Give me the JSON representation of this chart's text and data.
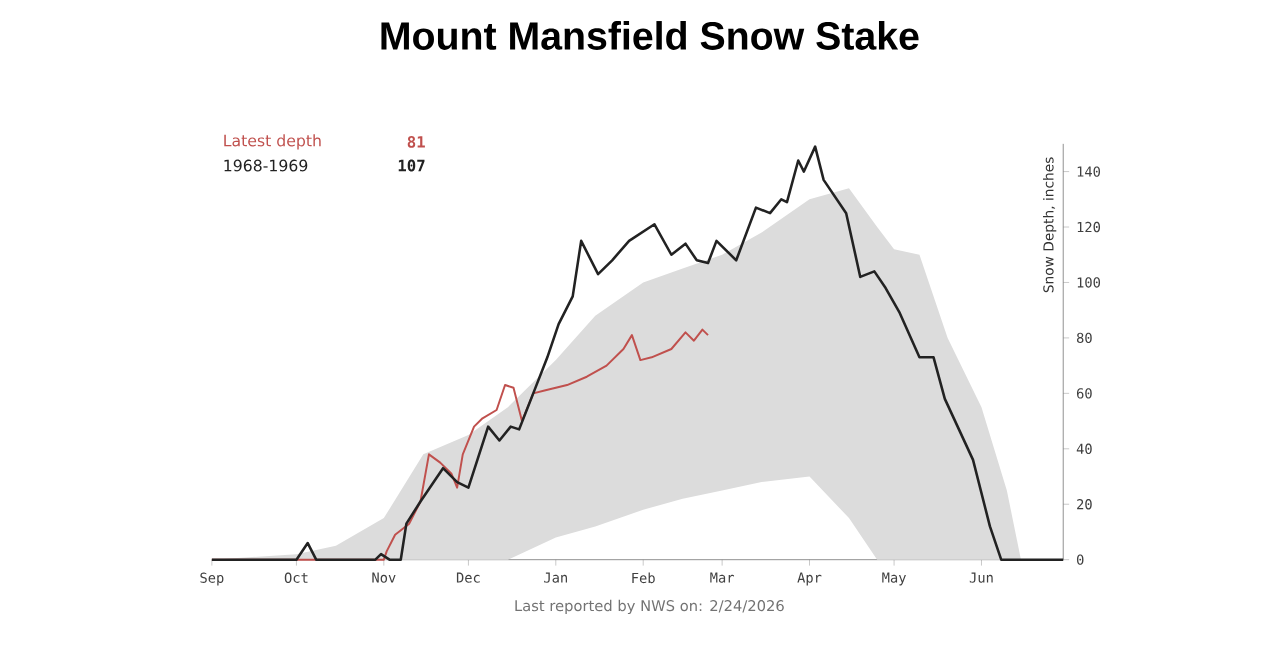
{
  "chart_data": {
    "type": "line",
    "title": "Mount Mansfield Snow Stake",
    "ylabel": "Snow Depth, inches",
    "xlim": [
      "2025-09-01",
      "2026-06-30"
    ],
    "xticks": [
      {
        "value": "2025-09-01",
        "label": "Sep"
      },
      {
        "value": "2025-10-01",
        "label": "Oct"
      },
      {
        "value": "2025-11-01",
        "label": "Nov"
      },
      {
        "value": "2025-12-01",
        "label": "Dec"
      },
      {
        "value": "2026-01-01",
        "label": "Jan"
      },
      {
        "value": "2026-02-01",
        "label": "Feb"
      },
      {
        "value": "2026-03-01",
        "label": "Mar"
      },
      {
        "value": "2026-04-01",
        "label": "Apr"
      },
      {
        "value": "2026-05-01",
        "label": "May"
      },
      {
        "value": "2026-06-01",
        "label": "Jun"
      }
    ],
    "ylim": [
      0,
      150
    ],
    "yticks": [
      0,
      20,
      40,
      60,
      80,
      100,
      120,
      140
    ],
    "legend": "top left",
    "annotations": [
      "81",
      "107",
      "Last reported by NWS on: 2/24/2026"
    ],
    "series": [
      {
        "color": "#dcdcdc",
        "x": [
          "2025-09-01",
          "2025-10-01",
          "2025-10-15",
          "2025-11-01",
          "2025-11-15",
          "2025-12-01",
          "2025-12-15",
          "2026-01-01",
          "2026-01-15",
          "2026-02-01",
          "2026-02-15",
          "2026-03-01",
          "2026-03-15",
          "2026-04-01",
          "2026-04-15",
          "2026-04-25",
          "2026-05-01",
          "2026-05-10",
          "2026-05-20",
          "2026-06-01",
          "2026-06-10",
          "2026-06-15",
          "2026-06-30"
        ],
        "values": [
          null,
          null,
          null,
          null,
          null,
          null,
          null,
          null,
          null,
          null,
          null,
          null,
          null,
          null,
          null,
          null,
          null,
          null,
          null,
          null,
          null,
          null,
          null
        ],
        "upper": [
          0,
          2,
          5,
          15,
          38,
          45,
          55,
          72,
          88,
          100,
          105,
          110,
          118,
          130,
          134,
          120,
          112,
          110,
          80,
          55,
          25,
          0,
          0
        ],
        "lower": [
          0,
          0,
          0,
          0,
          0,
          0,
          0,
          8,
          12,
          18,
          22,
          25,
          28,
          30,
          15,
          0,
          0,
          0,
          0,
          0,
          0,
          0,
          0
        ]
      },
      {
        "name": "Latest depth",
        "color": "#c0504d",
        "x": [
          "2025-09-01",
          "2025-11-01",
          "2025-11-02",
          "2025-11-05",
          "2025-11-10",
          "2025-11-14",
          "2025-11-17",
          "2025-11-21",
          "2025-11-25",
          "2025-11-27",
          "2025-11-29",
          "2025-12-03",
          "2025-12-06",
          "2025-12-11",
          "2025-12-14",
          "2025-12-17",
          "2025-12-20",
          "2025-12-24",
          "2025-12-28",
          "2026-01-05",
          "2026-01-12",
          "2026-01-19",
          "2026-01-25",
          "2026-01-28",
          "2026-01-31",
          "2026-02-04",
          "2026-02-11",
          "2026-02-16",
          "2026-02-19",
          "2026-02-22",
          "2026-02-24"
        ],
        "values": [
          0,
          0,
          3,
          9,
          13,
          21,
          38,
          35,
          31,
          26,
          38,
          48,
          51,
          54,
          63,
          62,
          50,
          60,
          61,
          63,
          66,
          70,
          76,
          81,
          72,
          73,
          76,
          82,
          79,
          83,
          81
        ]
      },
      {
        "name": "1968-1969",
        "color": "#222222",
        "x": [
          "2025-09-01",
          "2025-10-01",
          "2025-10-05",
          "2025-10-08",
          "2025-10-29",
          "2025-10-31",
          "2025-11-03",
          "2025-11-07",
          "2025-11-09",
          "2025-11-14",
          "2025-11-22",
          "2025-11-27",
          "2025-12-01",
          "2025-12-08",
          "2025-12-12",
          "2025-12-16",
          "2025-12-19",
          "2025-12-24",
          "2025-12-29",
          "2026-01-02",
          "2026-01-07",
          "2026-01-10",
          "2026-01-16",
          "2026-01-21",
          "2026-01-27",
          "2026-02-05",
          "2026-02-11",
          "2026-02-16",
          "2026-02-20",
          "2026-02-24",
          "2026-02-27",
          "2026-03-06",
          "2026-03-13",
          "2026-03-18",
          "2026-03-22",
          "2026-03-24",
          "2026-03-28",
          "2026-03-30",
          "2026-04-03",
          "2026-04-06",
          "2026-04-14",
          "2026-04-19",
          "2026-04-24",
          "2026-04-28",
          "2026-05-03",
          "2026-05-10",
          "2026-05-15",
          "2026-05-19",
          "2026-05-29",
          "2026-06-04",
          "2026-06-08",
          "2026-06-30"
        ],
        "values": [
          0,
          0,
          6,
          0,
          0,
          2,
          0,
          0,
          13,
          21,
          33,
          28,
          26,
          48,
          43,
          48,
          47,
          60,
          73,
          85,
          95,
          115,
          103,
          108,
          115,
          121,
          110,
          114,
          108,
          107,
          115,
          108,
          127,
          125,
          130,
          129,
          144,
          140,
          149,
          137,
          125,
          102,
          104,
          98,
          89,
          73,
          73,
          58,
          36,
          12,
          0,
          0
        ]
      }
    ]
  }
}
